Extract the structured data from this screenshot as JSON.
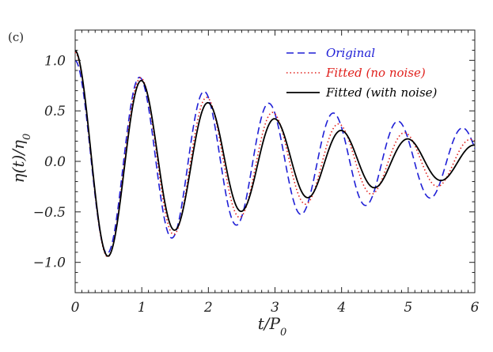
{
  "chart_data": {
    "type": "line",
    "panel_label": "(c)",
    "xlabel": "t/P",
    "xlabel_sub": "0",
    "ylabel": "η(t)/η",
    "ylabel_sub": "0",
    "xlim": [
      0,
      6
    ],
    "ylim": [
      -1.3,
      1.3
    ],
    "x_ticks": [
      0,
      1,
      2,
      3,
      4,
      5,
      6
    ],
    "x_tick_labels": [
      "0",
      "1",
      "2",
      "3",
      "4",
      "5",
      "6"
    ],
    "y_ticks": [
      -1.0,
      -0.5,
      0.0,
      0.5,
      1.0
    ],
    "y_tick_labels": [
      "−1.0",
      "−0.5",
      "0.0",
      "0.5",
      "1.0"
    ],
    "grid": false,
    "legend_position": "top-right",
    "series": [
      {
        "name": "Original",
        "color": "#1f1fd6",
        "dash": "dashed",
        "model": {
          "amplitude": 1.0,
          "decay": 0.19,
          "period": 0.97,
          "offset": 0.0
        }
      },
      {
        "name": "Fitted (no noise)",
        "color": "#e0201c",
        "dash": "dotted",
        "model": {
          "amplitude": 1.08,
          "decay": 0.27,
          "period": 0.99,
          "offset": 0.0
        }
      },
      {
        "name": "Fitted (with noise)",
        "color": "#000000",
        "dash": "solid",
        "model": {
          "amplitude": 1.1,
          "decay": 0.32,
          "period": 1.0,
          "offset": 0.0
        }
      }
    ]
  }
}
